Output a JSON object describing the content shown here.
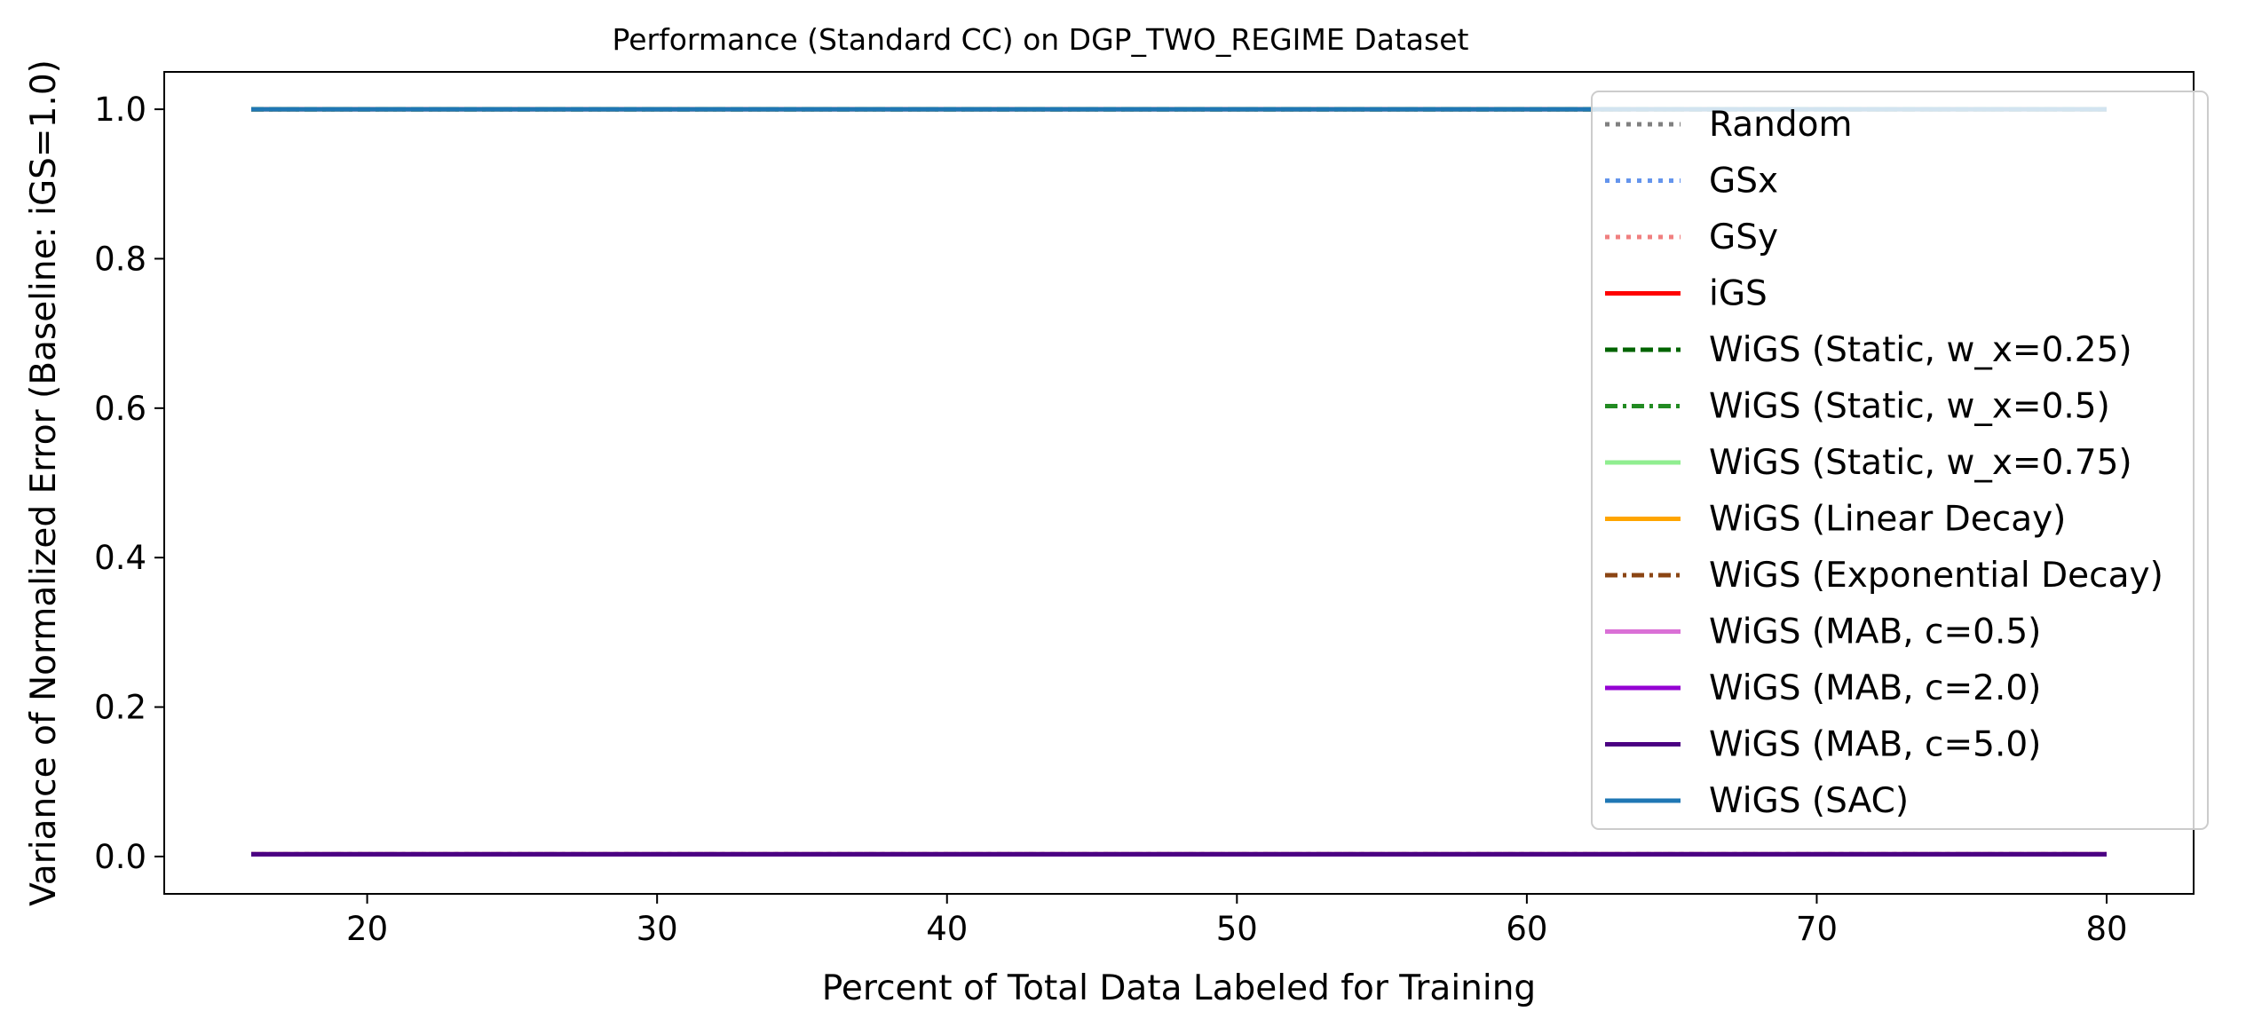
{
  "chart_data": {
    "type": "line",
    "title": "Performance (Standard CC) on DGP_TWO_REGIME Dataset",
    "xlabel": "Percent of Total Data Labeled for Training",
    "ylabel": "Variance of Normalized Error (Baseline: iGS=1.0)",
    "xlim": [
      13,
      83
    ],
    "ylim": [
      -0.05,
      1.05
    ],
    "xticks": [
      20,
      30,
      40,
      50,
      60,
      70,
      80
    ],
    "yticks": [
      "0.0",
      "0.2",
      "0.4",
      "0.6",
      "0.8",
      "1.0"
    ],
    "grid": false,
    "legend_position": "top-right",
    "series": [
      {
        "name": "Random",
        "color": "#808080",
        "dash": "dotted",
        "x": [
          16,
          80
        ],
        "y": [
          0.003,
          0.003
        ]
      },
      {
        "name": "GSx",
        "color": "#6495ed",
        "dash": "dotted",
        "x": [
          16,
          80
        ],
        "y": [
          0.003,
          0.003
        ]
      },
      {
        "name": "GSy",
        "color": "#f08080",
        "dash": "dotted",
        "x": [
          16,
          80
        ],
        "y": [
          0.003,
          0.003
        ]
      },
      {
        "name": "iGS",
        "color": "#ff0000",
        "dash": "solid",
        "x": [
          16,
          80
        ],
        "y": [
          1.0,
          1.0
        ]
      },
      {
        "name": "WiGS (Static, w_x=0.25)",
        "color": "#006400",
        "dash": "dashed",
        "x": [
          16,
          80
        ],
        "y": [
          1.0,
          1.0
        ]
      },
      {
        "name": "WiGS (Static, w_x=0.5)",
        "color": "#228b22",
        "dash": "dashdot",
        "x": [
          16,
          80
        ],
        "y": [
          1.0,
          1.0
        ]
      },
      {
        "name": "WiGS (Static, w_x=0.75)",
        "color": "#90ee90",
        "dash": "solid",
        "x": [
          16,
          80
        ],
        "y": [
          0.003,
          0.003
        ]
      },
      {
        "name": "WiGS (Linear Decay)",
        "color": "#ffa500",
        "dash": "solid",
        "x": [
          16,
          80
        ],
        "y": [
          0.003,
          0.003
        ]
      },
      {
        "name": "WiGS (Exponential Decay)",
        "color": "#8b4513",
        "dash": "dashdot",
        "x": [
          16,
          80
        ],
        "y": [
          0.003,
          0.003
        ]
      },
      {
        "name": "WiGS (MAB, c=0.5)",
        "color": "#da70d6",
        "dash": "solid",
        "x": [
          16,
          80
        ],
        "y": [
          0.003,
          0.003
        ]
      },
      {
        "name": "WiGS (MAB, c=2.0)",
        "color": "#9400d3",
        "dash": "solid",
        "x": [
          16,
          80
        ],
        "y": [
          0.003,
          0.003
        ]
      },
      {
        "name": "WiGS (MAB, c=5.0)",
        "color": "#4b0082",
        "dash": "solid",
        "x": [
          16,
          80
        ],
        "y": [
          0.003,
          0.003
        ]
      },
      {
        "name": "WiGS (SAC)",
        "color": "#1f77b4",
        "dash": "solid",
        "x": [
          16,
          80
        ],
        "y": [
          1.0,
          1.0
        ]
      }
    ]
  }
}
